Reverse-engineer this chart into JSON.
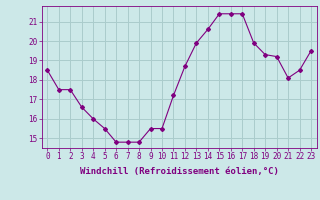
{
  "x": [
    0,
    1,
    2,
    3,
    4,
    5,
    6,
    7,
    8,
    9,
    10,
    11,
    12,
    13,
    14,
    15,
    16,
    17,
    18,
    19,
    20,
    21,
    22,
    23
  ],
  "y": [
    18.5,
    17.5,
    17.5,
    16.6,
    16.0,
    15.5,
    14.8,
    14.8,
    14.8,
    15.5,
    15.5,
    17.2,
    18.7,
    19.9,
    20.6,
    21.4,
    21.4,
    21.4,
    19.9,
    19.3,
    19.2,
    18.1,
    18.5,
    19.5
  ],
  "line_color": "#800080",
  "marker": "D",
  "marker_size": 2,
  "bg_color": "#cce8e8",
  "grid_color": "#aacccc",
  "xlabel": "Windchill (Refroidissement éolien,°C)",
  "xlabel_color": "#800080",
  "tick_color": "#800080",
  "ylim": [
    14.5,
    21.8
  ],
  "yticks": [
    15,
    16,
    17,
    18,
    19,
    20,
    21
  ],
  "xlim": [
    -0.5,
    23.5
  ],
  "xticks": [
    0,
    1,
    2,
    3,
    4,
    5,
    6,
    7,
    8,
    9,
    10,
    11,
    12,
    13,
    14,
    15,
    16,
    17,
    18,
    19,
    20,
    21,
    22,
    23
  ],
  "xtick_labels": [
    "0",
    "1",
    "2",
    "3",
    "4",
    "5",
    "6",
    "7",
    "8",
    "9",
    "10",
    "11",
    "12",
    "13",
    "14",
    "15",
    "16",
    "17",
    "18",
    "19",
    "20",
    "21",
    "22",
    "23"
  ],
  "font_size_tick": 5.5,
  "font_size_label": 6.5
}
